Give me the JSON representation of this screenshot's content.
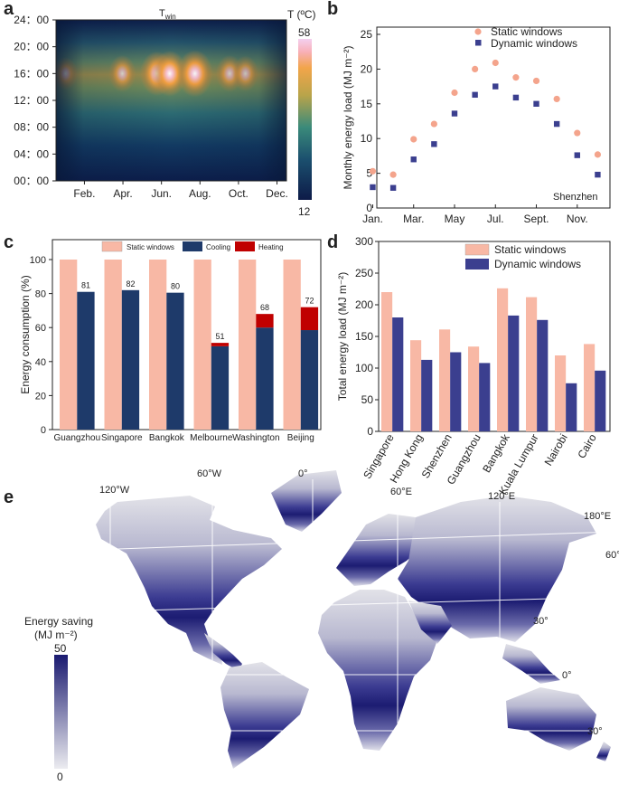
{
  "panel_labels": [
    "a",
    "b",
    "c",
    "d",
    "e"
  ],
  "colors": {
    "static": "#f8b8a5",
    "static_marker": "#f4a48c",
    "dynamic": "#3b3f8f",
    "cooling": "#1e3a6a",
    "heating": "#c00000",
    "map_high": "#1a1a70",
    "map_low": "#e6e6ec"
  },
  "chart_data": [
    {
      "id": "a",
      "type": "heatmap",
      "title": "T",
      "title_sub": "win",
      "colorbar_label": "T (ºC)",
      "colorbar_range": [
        12,
        58
      ],
      "colorbar_ticks": [
        "58",
        "12"
      ],
      "y_ticks": [
        "24：00",
        "20：00",
        "16：00",
        "12：00",
        "08：00",
        "04：00",
        "00：00"
      ],
      "x_ticks": [
        "Feb.",
        "Apr.",
        "Jun.",
        "Aug.",
        "Oct.",
        "Dec."
      ],
      "peak_hour": 16,
      "hot_spots_day_of_year": [
        15,
        105,
        160,
        180,
        220,
        275,
        300
      ],
      "hot_spot_intensity": [
        0.45,
        0.6,
        0.9,
        0.95,
        1.0,
        0.6,
        0.55
      ]
    },
    {
      "id": "b",
      "type": "scatter",
      "ylabel": "Monthly energy load (MJ m⁻²)",
      "x_ticks": [
        "Jan.",
        "Mar.",
        "May",
        "Jul.",
        "Sept.",
        "Nov."
      ],
      "ylim": [
        0,
        25
      ],
      "y_ticks": [
        0,
        5,
        10,
        15,
        20,
        25
      ],
      "annotation": "Shenzhen",
      "series": [
        {
          "name": "Static windows",
          "values": [
            5.3,
            4.8,
            9.9,
            12.1,
            16.6,
            20.0,
            20.9,
            18.8,
            18.3,
            15.7,
            10.8,
            7.7
          ]
        },
        {
          "name": "Dynamic windows",
          "values": [
            3.0,
            2.9,
            7.0,
            9.2,
            13.6,
            16.3,
            17.5,
            15.9,
            15.0,
            12.1,
            7.6,
            4.8
          ]
        }
      ]
    },
    {
      "id": "c",
      "type": "bar",
      "ylabel": "Energy consumption (%)",
      "ylim": [
        0,
        100
      ],
      "y_ticks": [
        0,
        20,
        40,
        60,
        80,
        100
      ],
      "categories": [
        "Guangzhou",
        "Singapore",
        "Bangkok",
        "Melbourne",
        "Washington",
        "Beijing"
      ],
      "legend": [
        "Static windows",
        "Cooling",
        "Heating"
      ],
      "static": [
        100,
        100,
        100,
        100,
        100,
        100
      ],
      "cooling": [
        81,
        82,
        80.5,
        49,
        60,
        58.5
      ],
      "heating": [
        0,
        0,
        0,
        2,
        8,
        13.5
      ],
      "totals": [
        "81",
        "82",
        "80",
        "51",
        "68",
        "72"
      ]
    },
    {
      "id": "d",
      "type": "bar",
      "ylabel": "Total energy load (MJ m⁻²)",
      "ylim": [
        0,
        300
      ],
      "y_ticks": [
        0,
        50,
        100,
        150,
        200,
        250,
        300
      ],
      "categories": [
        "Singapore",
        "Hong Kong",
        "Shenzhen",
        "Guangzhou",
        "Bangkok",
        "Kuala Lumpur",
        "Nairobi",
        "Cairo"
      ],
      "series": [
        {
          "name": "Static windows",
          "values": [
            220,
            144,
            161,
            134,
            226,
            212,
            120,
            138
          ]
        },
        {
          "name": "Dynamic windows",
          "values": [
            180,
            113,
            125,
            108,
            183,
            176,
            76,
            96
          ]
        }
      ]
    },
    {
      "id": "e",
      "type": "map",
      "colorbar_title_1": "Energy saving",
      "colorbar_title_2": "(MJ m⁻²)",
      "colorbar_range": [
        0,
        50
      ],
      "colorbar_ticks": [
        "50",
        "0"
      ],
      "grid_labels": [
        "120°W",
        "60°W",
        "0°",
        "60°E",
        "120°E",
        "180°E",
        "60°",
        "30°",
        "0°",
        "30°"
      ]
    }
  ]
}
